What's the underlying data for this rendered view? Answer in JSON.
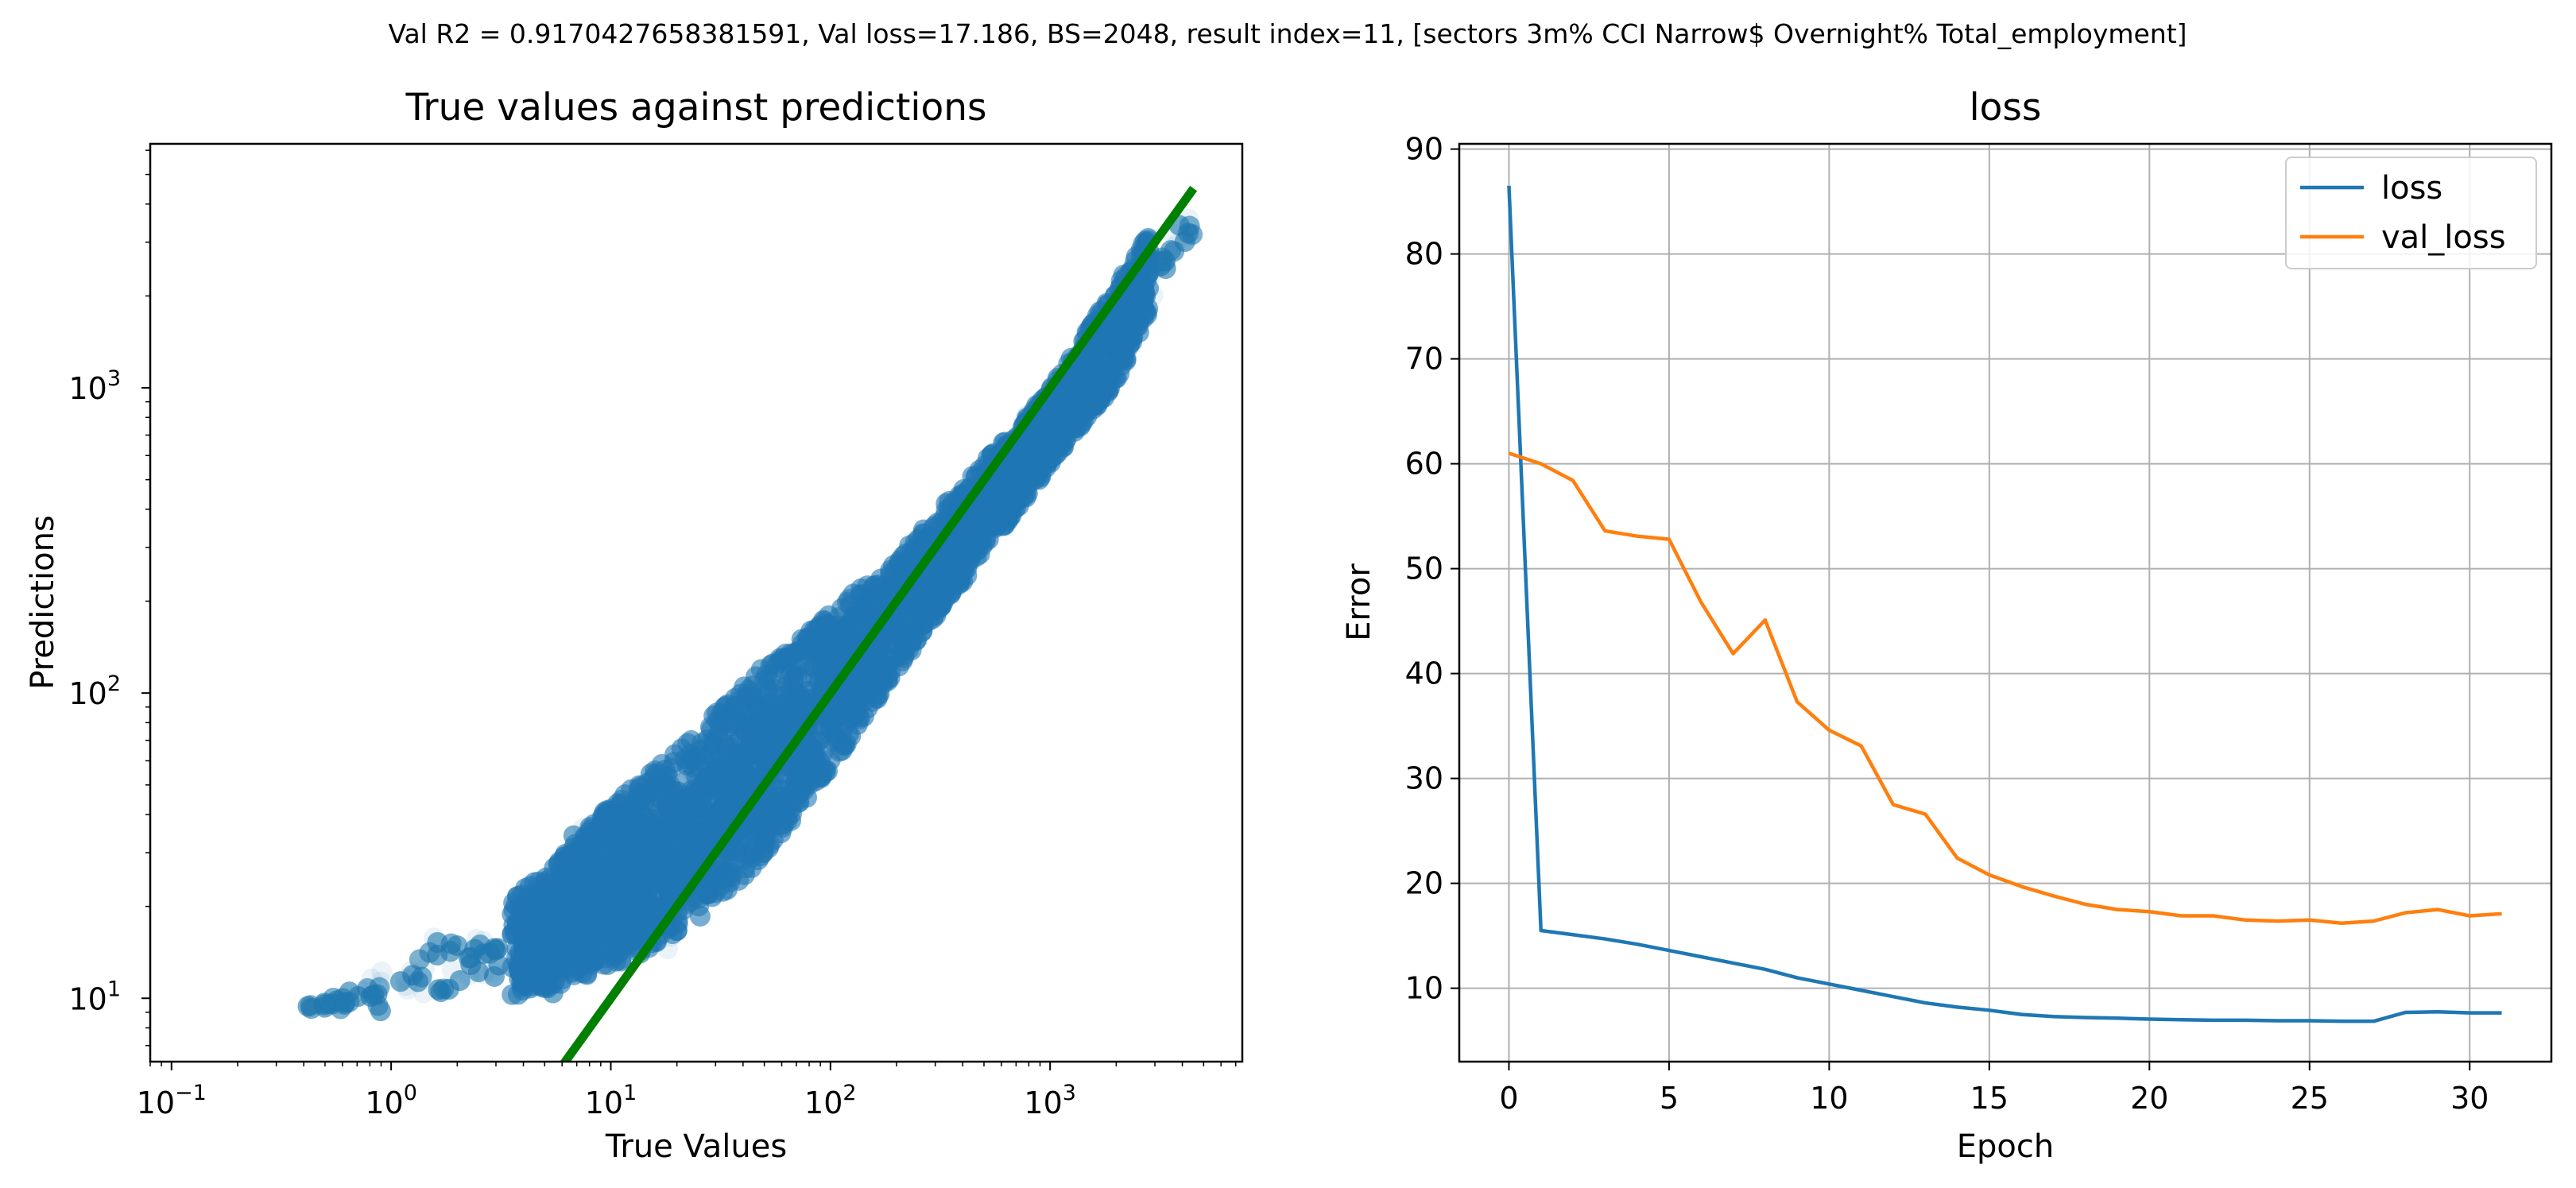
{
  "suptitle": "Val R2 = 0.9170427658381591, Val loss=17.186, BS=2048, result index=11, [sectors 3m% CCI Narrow$ Overnight% Total_employment]",
  "colors": {
    "scatter": "#1f77b4",
    "identity_line": "#008000",
    "loss": "#1f77b4",
    "val_loss": "#ff7f0e",
    "grid": "#b0b0b0"
  },
  "chart_data": [
    {
      "type": "scatter",
      "title": "True values against predictions",
      "xlabel": "True Values",
      "ylabel": "Predictions",
      "x_scale": "log",
      "y_scale": "log",
      "xlim": [
        0.08,
        7500
      ],
      "ylim": [
        6.2,
        6300
      ],
      "x_tick_labels": [
        {
          "label": "10",
          "exp": "−1",
          "value": 0.1
        },
        {
          "label": "10",
          "exp": "0",
          "value": 1
        },
        {
          "label": "10",
          "exp": "1",
          "value": 10
        },
        {
          "label": "10",
          "exp": "2",
          "value": 100
        },
        {
          "label": "10",
          "exp": "3",
          "value": 1000
        }
      ],
      "y_tick_labels": [
        {
          "label": "10",
          "exp": "1",
          "value": 10
        },
        {
          "label": "10",
          "exp": "2",
          "value": 100
        },
        {
          "label": "10",
          "exp": "3",
          "value": 1000
        }
      ],
      "identity_line": {
        "from": 6,
        "to": 4500
      },
      "cloud_bounds": [
        [
          0.4,
          9,
          9.5
        ],
        [
          1,
          8.5,
          14
        ],
        [
          2,
          8.5,
          20
        ],
        [
          3,
          8.5,
          24
        ],
        [
          5,
          9,
          30
        ],
        [
          10,
          10,
          55
        ],
        [
          20,
          12,
          85
        ],
        [
          50,
          22,
          160
        ],
        [
          100,
          45,
          230
        ],
        [
          200,
          100,
          330
        ],
        [
          500,
          250,
          650
        ],
        [
          1000,
          500,
          1100
        ],
        [
          2000,
          900,
          2500
        ],
        [
          3000,
          1700,
          3800
        ],
        [
          4500,
          2700,
          4300
        ]
      ],
      "grid": false
    },
    {
      "type": "line",
      "title": "loss",
      "xlabel": "Epoch",
      "ylabel": "Error",
      "xlim": [
        -1.55,
        32.55
      ],
      "ylim": [
        3.0,
        90.5
      ],
      "x_ticks": [
        0,
        5,
        10,
        15,
        20,
        25,
        30
      ],
      "y_ticks": [
        10,
        20,
        30,
        40,
        50,
        60,
        70,
        80,
        90
      ],
      "x": [
        0,
        1,
        2,
        3,
        4,
        5,
        6,
        7,
        8,
        9,
        10,
        11,
        12,
        13,
        14,
        15,
        16,
        17,
        18,
        19,
        20,
        21,
        22,
        23,
        24,
        25,
        26,
        27,
        28,
        29,
        30,
        31
      ],
      "series": [
        {
          "name": "loss",
          "values": [
            86.5,
            15.5,
            15.1,
            14.7,
            14.2,
            13.6,
            13.0,
            12.4,
            11.8,
            11.0,
            10.4,
            9.8,
            9.2,
            8.6,
            8.2,
            7.9,
            7.5,
            7.3,
            7.2,
            7.15,
            7.05,
            7.0,
            6.95,
            6.95,
            6.9,
            6.9,
            6.85,
            6.85,
            7.7,
            7.75,
            7.65,
            7.65
          ]
        },
        {
          "name": "val_loss",
          "values": [
            61.0,
            60.0,
            58.4,
            53.6,
            53.1,
            52.8,
            46.8,
            41.9,
            45.1,
            37.3,
            34.6,
            33.1,
            27.5,
            26.6,
            22.4,
            20.8,
            19.7,
            18.8,
            18.0,
            17.5,
            17.3,
            16.9,
            16.9,
            16.5,
            16.4,
            16.5,
            16.2,
            16.4,
            17.2,
            17.5,
            16.9,
            17.1
          ]
        }
      ],
      "legend": "top-right",
      "grid": true
    }
  ]
}
